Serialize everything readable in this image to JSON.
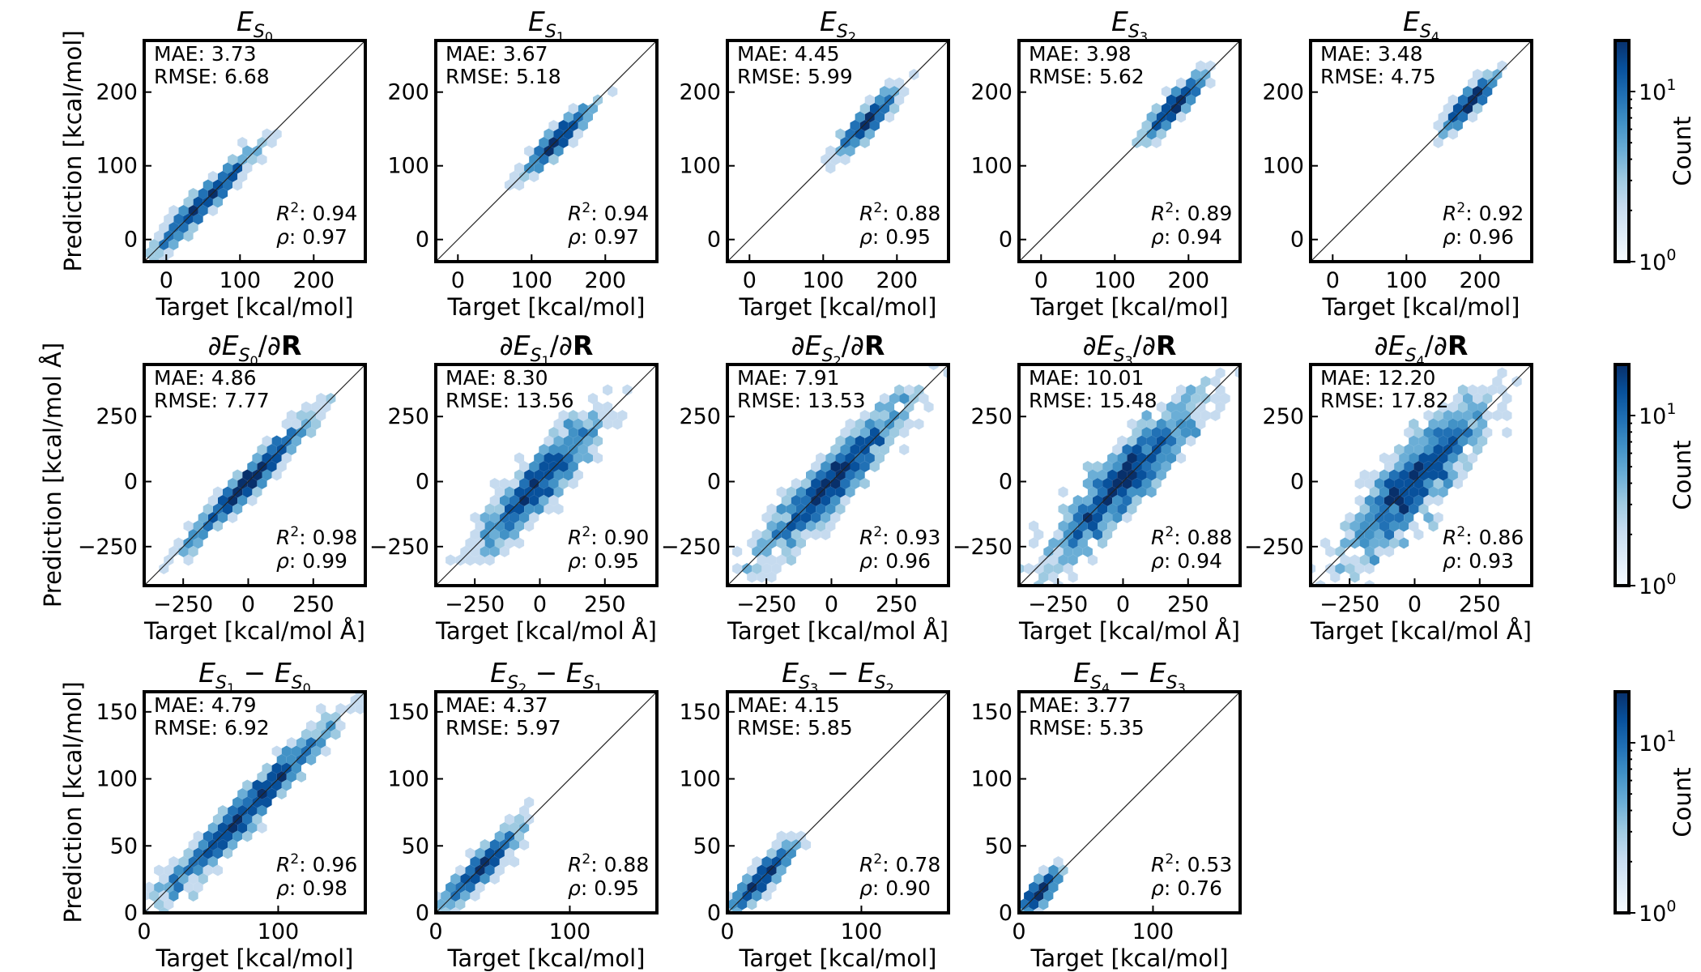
{
  "figure": {
    "colormap": [
      "#f7fbff",
      "#deebf7",
      "#c6dbef",
      "#9ecae1",
      "#6baed6",
      "#4292c6",
      "#2171b5",
      "#08519c",
      "#08306b"
    ],
    "colorbars": [
      {
        "label": "Count",
        "tick_labels": [
          "10",
          "10"
        ],
        "tick_exponents": [
          "0",
          "1"
        ],
        "ticks_log": [
          0,
          1
        ],
        "range_log": [
          0,
          1.3
        ]
      },
      {
        "label": "Count",
        "tick_labels": [
          "10",
          "10"
        ],
        "tick_exponents": [
          "0",
          "1"
        ],
        "ticks_log": [
          0,
          1
        ],
        "range_log": [
          0,
          1.3
        ]
      },
      {
        "label": "Count",
        "tick_labels": [
          "10",
          "10"
        ],
        "tick_exponents": [
          "0",
          "1"
        ],
        "ticks_log": [
          0,
          1
        ],
        "range_log": [
          0,
          1.3
        ]
      }
    ]
  },
  "chart_data": [
    {
      "type": "hexbin",
      "row": 0,
      "col": 0,
      "title": {
        "base": "E",
        "sub": "S",
        "subsub": "0",
        "prefix": "",
        "suffix": ""
      },
      "xlabel": "Target [kcal/mol]",
      "ylabel": "Prediction [kcal/mol]",
      "xlim": [
        -30,
        270
      ],
      "ylim": [
        -30,
        270
      ],
      "xticks": [
        0,
        100,
        200
      ],
      "yticks": [
        0,
        100,
        200
      ],
      "stats": {
        "mae": "MAE: 3.73",
        "rmse": "RMSE: 6.68",
        "r2": "0.94",
        "rho": "0.97"
      },
      "scatter": {
        "x_range": [
          -20,
          120
        ],
        "spread": 8,
        "bias": 0
      }
    },
    {
      "type": "hexbin",
      "row": 0,
      "col": 1,
      "title": {
        "base": "E",
        "sub": "S",
        "subsub": "1",
        "prefix": "",
        "suffix": ""
      },
      "xlabel": "Target [kcal/mol]",
      "ylabel": "",
      "xlim": [
        -30,
        270
      ],
      "ylim": [
        -30,
        270
      ],
      "xticks": [
        0,
        100,
        200
      ],
      "yticks": [
        0,
        100,
        200
      ],
      "stats": {
        "mae": "MAE: 3.67",
        "rmse": "RMSE: 5.18",
        "r2": "0.94",
        "rho": "0.97"
      },
      "scatter": {
        "x_range": [
          90,
          180
        ],
        "spread": 6,
        "bias": 0
      }
    },
    {
      "type": "hexbin",
      "row": 0,
      "col": 2,
      "title": {
        "base": "E",
        "sub": "S",
        "subsub": "2",
        "prefix": "",
        "suffix": ""
      },
      "xlabel": "Target [kcal/mol]",
      "ylabel": "",
      "xlim": [
        -30,
        270
      ],
      "ylim": [
        -30,
        270
      ],
      "xticks": [
        0,
        100,
        200
      ],
      "yticks": [
        0,
        100,
        200
      ],
      "stats": {
        "mae": "MAE: 4.45",
        "rmse": "RMSE: 5.99",
        "r2": "0.88",
        "rho": "0.95"
      },
      "scatter": {
        "x_range": [
          120,
          200
        ],
        "spread": 7,
        "bias": 0
      }
    },
    {
      "type": "hexbin",
      "row": 0,
      "col": 3,
      "title": {
        "base": "E",
        "sub": "S",
        "subsub": "3",
        "prefix": "",
        "suffix": ""
      },
      "xlabel": "Target [kcal/mol]",
      "ylabel": "",
      "xlim": [
        -30,
        270
      ],
      "ylim": [
        -30,
        270
      ],
      "xticks": [
        0,
        100,
        200
      ],
      "yticks": [
        0,
        100,
        200
      ],
      "stats": {
        "mae": "MAE: 3.98",
        "rmse": "RMSE: 5.62",
        "r2": "0.89",
        "rho": "0.94"
      },
      "scatter": {
        "x_range": [
          140,
          220
        ],
        "spread": 7,
        "bias": 0
      }
    },
    {
      "type": "hexbin",
      "row": 0,
      "col": 4,
      "title": {
        "base": "E",
        "sub": "S",
        "subsub": "4",
        "prefix": "",
        "suffix": ""
      },
      "xlabel": "Target [kcal/mol]",
      "ylabel": "",
      "xlim": [
        -30,
        270
      ],
      "ylim": [
        -30,
        270
      ],
      "xticks": [
        0,
        100,
        200
      ],
      "yticks": [
        0,
        100,
        200
      ],
      "stats": {
        "mae": "MAE: 3.48",
        "rmse": "RMSE: 4.75",
        "r2": "0.92",
        "rho": "0.96"
      },
      "scatter": {
        "x_range": [
          150,
          220
        ],
        "spread": 6,
        "bias": 0
      }
    },
    {
      "type": "hexbin",
      "row": 1,
      "col": 0,
      "title": {
        "base": "E",
        "sub": "S",
        "subsub": "0",
        "prefix": "∂",
        "suffix": "/∂R"
      },
      "xlabel": "Target [kcal/mol Å]",
      "ylabel": "Prediction [kcal/mol Å]",
      "xlim": [
        -400,
        450
      ],
      "ylim": [
        -400,
        450
      ],
      "xticks": [
        -250,
        0,
        250
      ],
      "yticks": [
        -250,
        0,
        250
      ],
      "stats": {
        "mae": "MAE: 4.86",
        "rmse": "RMSE: 7.77",
        "r2": "0.98",
        "rho": "0.99"
      },
      "scatter": {
        "x_range": [
          -250,
          250
        ],
        "spread": 25,
        "bias": 0
      }
    },
    {
      "type": "hexbin",
      "row": 1,
      "col": 1,
      "title": {
        "base": "E",
        "sub": "S",
        "subsub": "1",
        "prefix": "∂",
        "suffix": "/∂R"
      },
      "xlabel": "Target [kcal/mol Å]",
      "ylabel": "",
      "xlim": [
        -400,
        450
      ],
      "ylim": [
        -400,
        450
      ],
      "xticks": [
        -250,
        0,
        250
      ],
      "yticks": [
        -250,
        0,
        250
      ],
      "stats": {
        "mae": "MAE: 8.30",
        "rmse": "RMSE: 13.56",
        "r2": "0.90",
        "rho": "0.95"
      },
      "scatter": {
        "x_range": [
          -250,
          250
        ],
        "spread": 55,
        "bias": 0
      }
    },
    {
      "type": "hexbin",
      "row": 1,
      "col": 2,
      "title": {
        "base": "E",
        "sub": "S",
        "subsub": "2",
        "prefix": "∂",
        "suffix": "/∂R"
      },
      "xlabel": "Target [kcal/mol Å]",
      "ylabel": "",
      "xlim": [
        -400,
        450
      ],
      "ylim": [
        -400,
        450
      ],
      "xticks": [
        -250,
        0,
        250
      ],
      "yticks": [
        -250,
        0,
        250
      ],
      "stats": {
        "mae": "MAE: 7.91",
        "rmse": "RMSE: 13.53",
        "r2": "0.93",
        "rho": "0.96"
      },
      "scatter": {
        "x_range": [
          -300,
          300
        ],
        "spread": 55,
        "bias": 0
      }
    },
    {
      "type": "hexbin",
      "row": 1,
      "col": 3,
      "title": {
        "base": "E",
        "sub": "S",
        "subsub": "3",
        "prefix": "∂",
        "suffix": "/∂R"
      },
      "xlabel": "Target [kcal/mol Å]",
      "ylabel": "",
      "xlim": [
        -400,
        450
      ],
      "ylim": [
        -400,
        450
      ],
      "xticks": [
        -250,
        0,
        250
      ],
      "yticks": [
        -250,
        0,
        250
      ],
      "stats": {
        "mae": "MAE: 10.01",
        "rmse": "RMSE: 15.48",
        "r2": "0.88",
        "rho": "0.94"
      },
      "scatter": {
        "x_range": [
          -300,
          300
        ],
        "spread": 65,
        "bias": 0
      }
    },
    {
      "type": "hexbin",
      "row": 1,
      "col": 4,
      "title": {
        "base": "E",
        "sub": "S",
        "subsub": "4",
        "prefix": "∂",
        "suffix": "/∂R"
      },
      "xlabel": "Target [kcal/mol Å]",
      "ylabel": "",
      "xlim": [
        -400,
        450
      ],
      "ylim": [
        -400,
        450
      ],
      "xticks": [
        -250,
        0,
        250
      ],
      "yticks": [
        -250,
        0,
        250
      ],
      "stats": {
        "mae": "MAE: 12.20",
        "rmse": "RMSE: 17.82",
        "r2": "0.86",
        "rho": "0.93"
      },
      "scatter": {
        "x_range": [
          -300,
          300
        ],
        "spread": 75,
        "bias": 0
      }
    },
    {
      "type": "hexbin",
      "row": 2,
      "col": 0,
      "title": {
        "base": "E",
        "sub": "S",
        "subsub": "1",
        "prefix": "",
        "suffix": " − ",
        "base2": "E",
        "sub2": "S",
        "subsub2": "0"
      },
      "xlabel": "Target [kcal/mol]",
      "ylabel": "Prediction [kcal/mol]",
      "xlim": [
        0,
        165
      ],
      "ylim": [
        0,
        165
      ],
      "xticks": [
        0,
        100
      ],
      "yticks": [
        0,
        50,
        100,
        150
      ],
      "stats": {
        "mae": "MAE: 4.79",
        "rmse": "RMSE: 6.92",
        "r2": "0.96",
        "rho": "0.98"
      },
      "scatter": {
        "x_range": [
          3,
          150
        ],
        "spread": 7,
        "bias": 0
      }
    },
    {
      "type": "hexbin",
      "row": 2,
      "col": 1,
      "title": {
        "base": "E",
        "sub": "S",
        "subsub": "2",
        "prefix": "",
        "suffix": " − ",
        "base2": "E",
        "sub2": "S",
        "subsub2": "1"
      },
      "xlabel": "Target [kcal/mol]",
      "ylabel": "",
      "xlim": [
        0,
        165
      ],
      "ylim": [
        0,
        165
      ],
      "xticks": [
        0,
        100
      ],
      "yticks": [
        0,
        50,
        100,
        150
      ],
      "stats": {
        "mae": "MAE: 4.37",
        "rmse": "RMSE: 5.97",
        "r2": "0.88",
        "rho": "0.95"
      },
      "scatter": {
        "x_range": [
          3,
          65
        ],
        "spread": 5,
        "bias": 0
      }
    },
    {
      "type": "hexbin",
      "row": 2,
      "col": 2,
      "title": {
        "base": "E",
        "sub": "S",
        "subsub": "3",
        "prefix": "",
        "suffix": " − ",
        "base2": "E",
        "sub2": "S",
        "subsub2": "2"
      },
      "xlabel": "Target [kcal/mol]",
      "ylabel": "",
      "xlim": [
        0,
        165
      ],
      "ylim": [
        0,
        165
      ],
      "xticks": [
        0,
        100
      ],
      "yticks": [
        0,
        50,
        100,
        150
      ],
      "stats": {
        "mae": "MAE: 4.15",
        "rmse": "RMSE: 5.85",
        "r2": "0.78",
        "rho": "0.90"
      },
      "scatter": {
        "x_range": [
          2,
          50
        ],
        "spread": 4,
        "bias": 0
      }
    },
    {
      "type": "hexbin",
      "row": 2,
      "col": 3,
      "title": {
        "base": "E",
        "sub": "S",
        "subsub": "4",
        "prefix": "",
        "suffix": " − ",
        "base2": "E",
        "sub2": "S",
        "subsub2": "3"
      },
      "xlabel": "Target [kcal/mol]",
      "ylabel": "",
      "xlim": [
        0,
        165
      ],
      "ylim": [
        0,
        165
      ],
      "xticks": [
        0,
        100
      ],
      "yticks": [
        0,
        50,
        100,
        150
      ],
      "stats": {
        "mae": "MAE: 3.77",
        "rmse": "RMSE: 5.35",
        "r2": "0.53",
        "rho": "0.76"
      },
      "scatter": {
        "x_range": [
          0,
          30
        ],
        "spread": 4,
        "bias": 0
      }
    }
  ]
}
